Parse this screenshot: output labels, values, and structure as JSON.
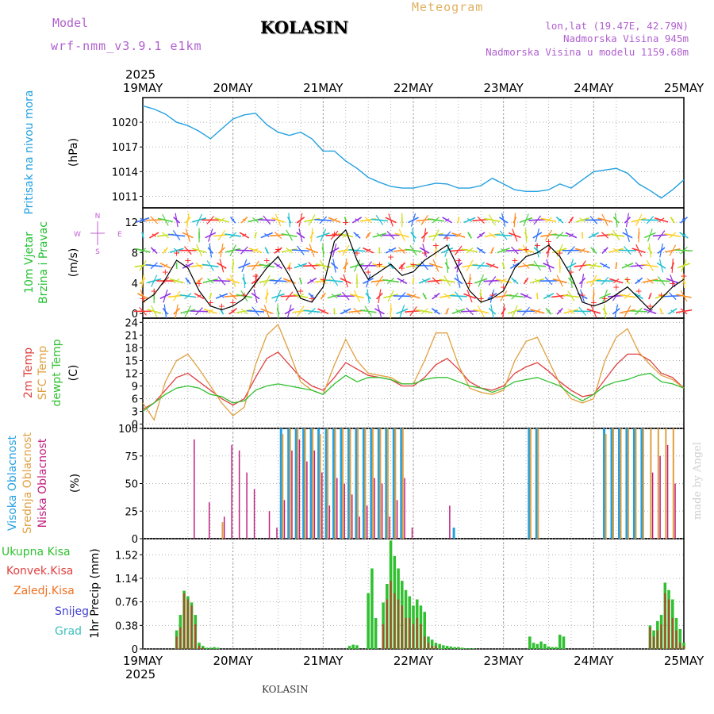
{
  "header": {
    "model_label": "Model",
    "model_name": "wrf-nmm_v3.9.1 e1km",
    "station": "KOLASIN",
    "product": "Meteogram",
    "lonlat": "lon,lat (19.47E, 42.79N)",
    "elevation": "Nadmorska Visina 945m",
    "model_elevation": "Nadmorska Visina u modelu 1159.68m"
  },
  "footer": {
    "station": "KOLASIN",
    "watermark": "made by Angel"
  },
  "colors": {
    "pressure": "#22a0e0",
    "wind_label": "#22c030",
    "temp2m": "#e04040",
    "sfc_temp": "#e0a040",
    "dewpoint": "#30c030",
    "high_cloud": "#22a0e0",
    "mid_cloud": "#e0a040",
    "low_cloud": "#c02080",
    "total_precip": "#30c030",
    "conv_precip": "#e04040",
    "frz_precip": "#f07020",
    "snow": "#4040d0",
    "hail": "#40c0c0",
    "compass": "#c060d0"
  },
  "chart_data": [
    {
      "type": "line",
      "panel": "pressure",
      "ylabel": "(hPa)",
      "side_label": "Pritisak na nivou mora",
      "year": "2025",
      "x_ticks": [
        "19MAY",
        "20MAY",
        "21MAY",
        "22MAY",
        "23MAY",
        "24MAY",
        "25MAY"
      ],
      "yticks": [
        1011,
        1014,
        1017,
        1020
      ],
      "ylim": [
        1009.6,
        1023
      ],
      "x_hours": [
        0,
        3,
        6,
        9,
        12,
        15,
        18,
        21,
        24,
        27,
        30,
        33,
        36,
        39,
        42,
        45,
        48,
        51,
        54,
        57,
        60,
        63,
        66,
        69,
        72,
        75,
        78,
        81,
        84,
        87,
        90,
        93,
        96,
        99,
        102,
        105,
        108,
        111,
        114,
        117,
        120,
        123,
        126,
        129,
        132,
        135,
        138,
        141,
        144
      ],
      "series": [
        {
          "values": [
            1022.0,
            1021.6,
            1021.0,
            1020.0,
            1019.6,
            1018.9,
            1018.0,
            1019.2,
            1020.4,
            1020.9,
            1021.1,
            1019.7,
            1018.8,
            1018.4,
            1018.8,
            1018.0,
            1016.5,
            1016.5,
            1015.3,
            1014.4,
            1013.3,
            1012.7,
            1012.2,
            1012.0,
            1012.0,
            1012.3,
            1012.6,
            1012.5,
            1012.0,
            1012.0,
            1012.3,
            1013.2,
            1012.5,
            1011.8,
            1011.6,
            1011.6,
            1011.8,
            1012.5,
            1012.0,
            1013.0,
            1014.0,
            1014.2,
            1014.4,
            1013.8,
            1012.5,
            1011.7,
            1010.8,
            1011.8,
            1013.0
          ]
        }
      ]
    },
    {
      "type": "line",
      "panel": "wind",
      "ylabel": "(m/s)",
      "side_label": [
        "10m Vjetar",
        "Brzina i Pravac"
      ],
      "compass": {
        "n": "N",
        "s": "S",
        "w": "W",
        "e": "E"
      },
      "yticks": [
        0,
        4,
        8,
        12
      ],
      "ylim": [
        -0.6,
        13.9
      ],
      "x_hours": [
        0,
        3,
        6,
        9,
        12,
        15,
        18,
        21,
        24,
        27,
        30,
        33,
        36,
        39,
        42,
        45,
        48,
        51,
        54,
        57,
        60,
        63,
        66,
        69,
        72,
        75,
        78,
        81,
        84,
        87,
        90,
        93,
        96,
        99,
        102,
        105,
        108,
        111,
        114,
        117,
        120,
        123,
        126,
        129,
        132,
        135,
        138,
        141,
        144
      ],
      "series": [
        {
          "name": "speed",
          "values": [
            1.5,
            2.5,
            4.5,
            7.0,
            6.0,
            3.0,
            1.0,
            0.5,
            1.0,
            2.0,
            4.0,
            6.0,
            7.5,
            5.0,
            2.0,
            1.5,
            3.5,
            9.5,
            11.0,
            7.0,
            4.5,
            5.5,
            6.5,
            5.0,
            5.5,
            7.0,
            8.0,
            9.0,
            6.0,
            3.0,
            1.5,
            2.0,
            3.0,
            6.0,
            7.5,
            8.0,
            9.0,
            7.5,
            5.0,
            1.5,
            1.0,
            1.5,
            2.5,
            3.5,
            2.0,
            0.5,
            2.0,
            3.5,
            4.5
          ]
        },
        {
          "name": "gust",
          "values": [
            2.0,
            3.0,
            5.5,
            8.0,
            7.0,
            4.0,
            1.5,
            1.0,
            1.5,
            2.5,
            5.0,
            7.0,
            8.5,
            6.0,
            3.0,
            2.0,
            4.5,
            10.5,
            12.0,
            8.0,
            5.5,
            6.5,
            7.5,
            6.0,
            6.5,
            8.0,
            9.0,
            10.0,
            7.0,
            4.0,
            2.0,
            2.5,
            3.5,
            7.0,
            8.5,
            9.0,
            9.5,
            8.0,
            5.5,
            2.5,
            1.5,
            2.0,
            3.5,
            4.5,
            3.0,
            1.0,
            2.5,
            4.0,
            5.0
          ]
        }
      ]
    },
    {
      "type": "line",
      "panel": "temperature",
      "ylabel": "(C)",
      "side_labels": [
        "2m Temp",
        "SFC Temp",
        "dewpt Temp"
      ],
      "yticks": [
        0,
        3,
        6,
        9,
        12,
        15,
        18,
        21,
        24
      ],
      "ylim": [
        -1,
        25
      ],
      "x_hours": [
        0,
        3,
        6,
        9,
        12,
        15,
        18,
        21,
        24,
        27,
        30,
        33,
        36,
        39,
        42,
        45,
        48,
        51,
        54,
        57,
        60,
        63,
        66,
        69,
        72,
        75,
        78,
        81,
        84,
        87,
        90,
        93,
        96,
        99,
        102,
        105,
        108,
        111,
        114,
        117,
        120,
        123,
        126,
        129,
        132,
        135,
        138,
        141,
        144
      ],
      "series": [
        {
          "name": "2m Temp",
          "values": [
            3.5,
            5.0,
            8.0,
            11.0,
            12.0,
            10.0,
            8.0,
            6.0,
            4.5,
            6.0,
            11.0,
            15.5,
            17.0,
            14.0,
            11.0,
            9.0,
            8.0,
            11.0,
            14.5,
            13.0,
            11.5,
            11.0,
            10.5,
            9.0,
            9.0,
            11.0,
            14.0,
            15.5,
            13.0,
            10.0,
            8.5,
            8.0,
            9.0,
            12.0,
            13.5,
            14.5,
            12.5,
            10.0,
            8.0,
            6.5,
            7.0,
            10.5,
            14.0,
            16.5,
            16.5,
            15.0,
            12.0,
            11.0,
            8.5
          ]
        },
        {
          "name": "SFC Temp",
          "values": [
            5.0,
            1.0,
            10.0,
            15.0,
            16.5,
            13.0,
            9.0,
            5.0,
            2.0,
            4.0,
            14.0,
            21.0,
            23.5,
            17.0,
            10.0,
            8.0,
            7.0,
            14.0,
            20.0,
            15.0,
            12.0,
            11.5,
            11.0,
            9.5,
            9.5,
            15.0,
            21.5,
            21.5,
            14.0,
            8.5,
            7.5,
            7.0,
            8.0,
            15.0,
            19.5,
            20.5,
            15.0,
            9.5,
            6.0,
            5.0,
            6.0,
            15.0,
            20.5,
            22.5,
            17.0,
            14.0,
            11.5,
            10.5,
            8.5
          ]
        },
        {
          "name": "dewpt Temp",
          "values": [
            3.0,
            5.0,
            7.0,
            8.5,
            9.0,
            8.5,
            7.0,
            6.5,
            5.0,
            5.5,
            8.0,
            9.0,
            9.5,
            9.0,
            8.5,
            8.0,
            7.0,
            9.5,
            11.5,
            10.0,
            11.0,
            11.0,
            10.5,
            9.5,
            9.5,
            10.5,
            11.0,
            11.0,
            10.0,
            9.0,
            8.5,
            7.5,
            8.5,
            10.0,
            10.5,
            11.0,
            10.0,
            9.0,
            7.0,
            5.5,
            7.0,
            9.0,
            10.0,
            10.5,
            11.5,
            12.0,
            10.0,
            9.5,
            8.5
          ]
        }
      ]
    },
    {
      "type": "bar",
      "panel": "clouds",
      "ylabel": "(%)",
      "side_labels": [
        "Visoka Oblacnost",
        "Srednja Oblacnost",
        "Niska Oblacnost"
      ],
      "yticks": [
        0,
        25,
        50,
        75,
        100
      ],
      "ylim": [
        0,
        100
      ],
      "x_hours": [
        1,
        3,
        5,
        7,
        9,
        11,
        13,
        15,
        17,
        19,
        21,
        23,
        25,
        27,
        29,
        31,
        33,
        35,
        37,
        39,
        41,
        43,
        45,
        47,
        49,
        51,
        53,
        55,
        57,
        59,
        61,
        63,
        65,
        67,
        69,
        71,
        73,
        75,
        77,
        79,
        81,
        83,
        85,
        87,
        89,
        91,
        93,
        95,
        97,
        99,
        101,
        103,
        105,
        107,
        109,
        111,
        113,
        115,
        117,
        119,
        121,
        123,
        125,
        127,
        129,
        131,
        133,
        135,
        137,
        139,
        141,
        143
      ],
      "series": [
        {
          "name": "Visoka Oblacnost",
          "values": [
            0,
            0,
            0,
            0,
            0,
            0,
            0,
            0,
            0,
            0,
            0,
            0,
            0,
            0,
            0,
            0,
            0,
            0,
            100,
            100,
            100,
            100,
            100,
            100,
            100,
            100,
            100,
            100,
            100,
            100,
            100,
            100,
            100,
            100,
            100,
            0,
            0,
            0,
            0,
            0,
            0,
            10,
            0,
            0,
            0,
            0,
            0,
            0,
            0,
            0,
            0,
            100,
            100,
            0,
            0,
            0,
            0,
            0,
            0,
            0,
            0,
            100,
            100,
            100,
            100,
            100,
            100,
            0,
            0,
            0,
            0,
            0
          ]
        },
        {
          "name": "Srednja Oblacnost",
          "values": [
            0,
            0,
            0,
            0,
            0,
            0,
            0,
            0,
            0,
            0,
            15,
            0,
            0,
            0,
            0,
            0,
            0,
            0,
            95,
            100,
            100,
            100,
            100,
            95,
            100,
            100,
            100,
            100,
            100,
            100,
            100,
            100,
            100,
            100,
            100,
            0,
            0,
            0,
            0,
            0,
            0,
            0,
            0,
            0,
            0,
            0,
            0,
            0,
            0,
            0,
            0,
            100,
            100,
            0,
            0,
            0,
            0,
            0,
            0,
            0,
            0,
            95,
            100,
            100,
            100,
            100,
            100,
            100,
            100,
            100,
            100,
            0
          ]
        },
        {
          "name": "Niska Oblacnost",
          "values": [
            0,
            0,
            0,
            0,
            0,
            0,
            90,
            0,
            33,
            0,
            20,
            85,
            80,
            60,
            45,
            0,
            25,
            10,
            35,
            80,
            90,
            70,
            80,
            60,
            30,
            55,
            50,
            40,
            20,
            30,
            55,
            50,
            20,
            35,
            55,
            10,
            0,
            0,
            0,
            0,
            30,
            0,
            0,
            0,
            0,
            0,
            0,
            0,
            0,
            0,
            0,
            0,
            0,
            0,
            0,
            0,
            0,
            0,
            0,
            0,
            0,
            0,
            0,
            0,
            0,
            0,
            0,
            60,
            75,
            85,
            50,
            0
          ]
        }
      ]
    },
    {
      "type": "bar",
      "panel": "precipitation",
      "ylabel": "1hr Precip (mm)",
      "legend": [
        "Ukupna Kisa",
        "Konvek.Kisa",
        "Zaledj.Kisa",
        "Snijeg",
        "Grad"
      ],
      "yticks": [
        0,
        0.38,
        0.76,
        1.14,
        1.52
      ],
      "ylim": [
        0,
        1.78
      ],
      "x_hours": [
        9,
        10,
        11,
        12,
        13,
        14,
        15,
        16,
        17,
        18,
        19,
        20,
        55,
        56,
        57,
        60,
        61,
        62,
        64,
        65,
        66,
        67,
        68,
        69,
        70,
        71,
        72,
        73,
        74,
        75,
        76,
        77,
        78,
        79,
        80,
        81,
        82,
        83,
        84,
        85,
        86,
        87,
        88,
        103,
        104,
        105,
        106,
        107,
        108,
        109,
        110,
        111,
        112,
        135,
        136,
        137,
        138,
        139,
        140,
        141,
        142,
        143,
        144
      ],
      "series": [
        {
          "name": "Ukupna Kisa",
          "values": [
            0.3,
            0.55,
            0.94,
            0.85,
            0.75,
            0.55,
            0.1,
            0.05,
            0.02,
            0.02,
            0.03,
            0.02,
            0.05,
            0.07,
            0.06,
            0.9,
            1.3,
            0.5,
            0.75,
            1.05,
            1.75,
            1.5,
            1.3,
            1.1,
            0.95,
            0.85,
            0.7,
            0.8,
            0.7,
            0.6,
            0.2,
            0.15,
            0.1,
            0.08,
            0.06,
            0.05,
            0.04,
            0.03,
            0.03,
            0.02,
            0.01,
            0.01,
            0.01,
            0.2,
            0.1,
            0.08,
            0.12,
            0.08,
            0.04,
            0.03,
            0.03,
            0.23,
            0.2,
            0.38,
            0.3,
            0.45,
            0.55,
            1.07,
            0.95,
            0.8,
            0.5,
            0.32,
            0.1
          ]
        },
        {
          "name": "Konvek.Kisa",
          "values": [
            0.2,
            0.35,
            0.9,
            0.8,
            0.7,
            0.4,
            0.05,
            0.02,
            0,
            0,
            0,
            0,
            0,
            0,
            0,
            0,
            0,
            0,
            0.4,
            0.8,
            1.1,
            0.9,
            0.8,
            0.7,
            0.5,
            0.5,
            0.4,
            0.5,
            0.4,
            0.2,
            0.1,
            0.05,
            0.05,
            0,
            0,
            0,
            0,
            0,
            0,
            0,
            0,
            0,
            0,
            0,
            0,
            0,
            0,
            0,
            0,
            0,
            0,
            0,
            0,
            0.35,
            0.2,
            0.3,
            0.4,
            0.9,
            0.8,
            0.5,
            0.3,
            0.1,
            0.05
          ]
        }
      ]
    }
  ]
}
